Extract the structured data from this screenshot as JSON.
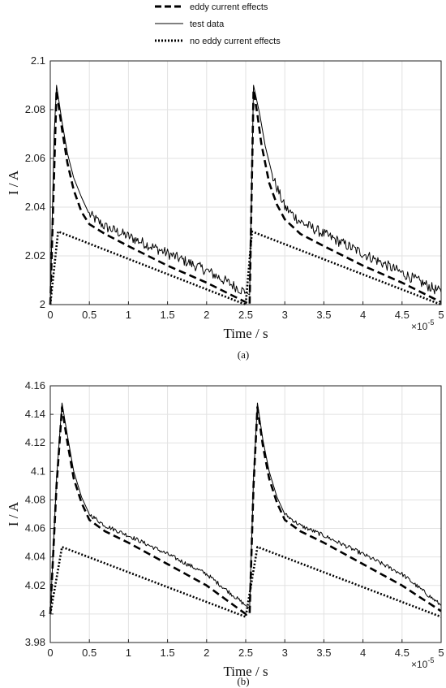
{
  "legend": {
    "entries": [
      {
        "label": "eddy current effects",
        "style": "dashed"
      },
      {
        "label": "test data",
        "style": "solid"
      },
      {
        "label": "no eddy current effects",
        "style": "dotted"
      }
    ]
  },
  "chart_data": [
    {
      "type": "line",
      "caption": "(a)",
      "xlabel": "Time / s",
      "ylabel": "I / A",
      "x_multiplier": {
        "base": "×10",
        "exponent": "-5"
      },
      "xlim": [
        0,
        5
      ],
      "ylim": [
        2,
        2.1
      ],
      "xticks": [
        "0",
        "0.5",
        "1",
        "1.5",
        "2",
        "2.5",
        "3",
        "3.5",
        "4",
        "4.5",
        "5"
      ],
      "yticks": [
        "2",
        "2.02",
        "2.04",
        "2.06",
        "2.08",
        "2.1"
      ],
      "grid": true,
      "series": [
        {
          "name": "eddy current effects",
          "style": "dashed",
          "points": [
            [
              0,
              2.0
            ],
            [
              0.08,
              2.088
            ],
            [
              0.15,
              2.072
            ],
            [
              0.22,
              2.058
            ],
            [
              0.3,
              2.047
            ],
            [
              0.4,
              2.038
            ],
            [
              0.5,
              2.033
            ],
            [
              0.7,
              2.029
            ],
            [
              1.0,
              2.024
            ],
            [
              1.5,
              2.016
            ],
            [
              2.0,
              2.009
            ],
            [
              2.5,
              2.001
            ],
            [
              2.55,
              2.0
            ],
            [
              2.6,
              2.088
            ],
            [
              2.65,
              2.078
            ],
            [
              2.7,
              2.066
            ],
            [
              2.8,
              2.05
            ],
            [
              2.9,
              2.041
            ],
            [
              3.0,
              2.035
            ],
            [
              3.2,
              2.029
            ],
            [
              3.5,
              2.024
            ],
            [
              4.0,
              2.016
            ],
            [
              4.5,
              2.009
            ],
            [
              5.0,
              2.001
            ]
          ]
        },
        {
          "name": "test data",
          "style": "solid",
          "points": [
            [
              0,
              2.0
            ],
            [
              0.05,
              2.07
            ],
            [
              0.08,
              2.09
            ],
            [
              0.15,
              2.075
            ],
            [
              0.22,
              2.062
            ],
            [
              0.3,
              2.052
            ],
            [
              0.4,
              2.044
            ],
            [
              0.5,
              2.037
            ],
            [
              0.7,
              2.032
            ],
            [
              1.0,
              2.028
            ],
            [
              1.5,
              2.021
            ],
            [
              2.0,
              2.014
            ],
            [
              2.5,
              2.005
            ],
            [
              2.55,
              2.004
            ],
            [
              2.6,
              2.09
            ],
            [
              2.68,
              2.078
            ],
            [
              2.75,
              2.065
            ],
            [
              2.85,
              2.052
            ],
            [
              3.0,
              2.04
            ],
            [
              3.2,
              2.034
            ],
            [
              3.5,
              2.029
            ],
            [
              4.0,
              2.021
            ],
            [
              4.5,
              2.013
            ],
            [
              5.0,
              2.005
            ]
          ],
          "noise": 0.0022
        },
        {
          "name": "no eddy current effects",
          "style": "dotted",
          "points": [
            [
              0,
              2.0
            ],
            [
              0.1,
              2.03
            ],
            [
              2.5,
              2.0
            ],
            [
              2.58,
              2.03
            ],
            [
              5.0,
              2.0
            ]
          ]
        }
      ]
    },
    {
      "type": "line",
      "caption": "(b)",
      "xlabel": "Time / s",
      "ylabel": "I / A",
      "x_multiplier": {
        "base": "×10",
        "exponent": "-5"
      },
      "xlim": [
        0,
        5
      ],
      "ylim": [
        3.98,
        4.16
      ],
      "xticks": [
        "0",
        "0.5",
        "1",
        "1.5",
        "2",
        "2.5",
        "3",
        "3.5",
        "4",
        "4.5",
        "5"
      ],
      "yticks": [
        "3.98",
        "4",
        "4.02",
        "4.04",
        "4.06",
        "4.08",
        "4.1",
        "4.12",
        "4.14",
        "4.16"
      ],
      "grid": true,
      "series": [
        {
          "name": "eddy current effects",
          "style": "dashed",
          "points": [
            [
              0,
              4.0
            ],
            [
              0.08,
              4.09
            ],
            [
              0.15,
              4.145
            ],
            [
              0.22,
              4.12
            ],
            [
              0.3,
              4.095
            ],
            [
              0.4,
              4.078
            ],
            [
              0.5,
              4.066
            ],
            [
              0.7,
              4.058
            ],
            [
              1.0,
              4.05
            ],
            [
              1.5,
              4.035
            ],
            [
              2.0,
              4.02
            ],
            [
              2.5,
              4.0
            ],
            [
              2.55,
              4.0
            ],
            [
              2.6,
              4.09
            ],
            [
              2.65,
              4.145
            ],
            [
              2.72,
              4.118
            ],
            [
              2.8,
              4.095
            ],
            [
              2.9,
              4.078
            ],
            [
              3.0,
              4.066
            ],
            [
              3.2,
              4.058
            ],
            [
              3.5,
              4.05
            ],
            [
              4.0,
              4.035
            ],
            [
              4.5,
              4.02
            ],
            [
              5.0,
              4.002
            ]
          ]
        },
        {
          "name": "test data",
          "style": "solid",
          "points": [
            [
              0,
              4.0
            ],
            [
              0.08,
              4.095
            ],
            [
              0.15,
              4.148
            ],
            [
              0.22,
              4.125
            ],
            [
              0.3,
              4.1
            ],
            [
              0.4,
              4.082
            ],
            [
              0.5,
              4.07
            ],
            [
              0.7,
              4.062
            ],
            [
              1.0,
              4.055
            ],
            [
              1.5,
              4.042
            ],
            [
              2.0,
              4.028
            ],
            [
              2.5,
              4.006
            ],
            [
              2.55,
              4.004
            ],
            [
              2.6,
              4.095
            ],
            [
              2.65,
              4.148
            ],
            [
              2.72,
              4.122
            ],
            [
              2.8,
              4.1
            ],
            [
              2.9,
              4.082
            ],
            [
              3.0,
              4.07
            ],
            [
              3.2,
              4.062
            ],
            [
              3.5,
              4.055
            ],
            [
              4.0,
              4.042
            ],
            [
              4.5,
              4.028
            ],
            [
              5.0,
              4.006
            ]
          ],
          "noise": 0.0015
        },
        {
          "name": "no eddy current effects",
          "style": "dotted",
          "points": [
            [
              0,
              4.0
            ],
            [
              0.15,
              4.047
            ],
            [
              2.5,
              3.998
            ],
            [
              2.65,
              4.047
            ],
            [
              5.0,
              3.998
            ]
          ]
        }
      ]
    }
  ]
}
